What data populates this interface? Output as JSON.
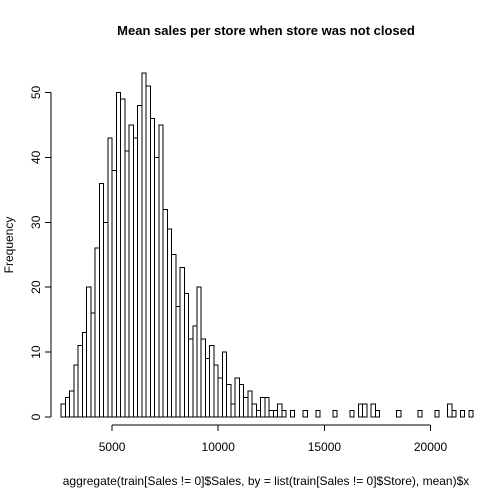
{
  "chart_data": {
    "type": "bar",
    "title": "Mean sales per store when store was not closed",
    "xlabel": "aggregate(train[Sales != 0]$Sales, by = list(train[Sales != 0]$Store), mean)$x",
    "ylabel": "Frequency",
    "xlim": [
      2500,
      22000
    ],
    "ylim": [
      0,
      53
    ],
    "bin_start": 2600,
    "bin_width": 200,
    "x_ticks": [
      5000,
      10000,
      15000,
      20000
    ],
    "x_tick_labels": [
      "5000",
      "10000",
      "15000",
      "20000"
    ],
    "y_ticks": [
      0,
      10,
      20,
      30,
      40,
      50
    ],
    "y_tick_labels": [
      "0",
      "10",
      "20",
      "30",
      "40",
      "50"
    ],
    "grid": false,
    "legend": "none",
    "bar_fill": "#ffffff",
    "bar_stroke": "#000000",
    "values": [
      2,
      3,
      4,
      8,
      11,
      13,
      20,
      16,
      26,
      36,
      30,
      43,
      38,
      50,
      49,
      41,
      45,
      43,
      48,
      53,
      51,
      46,
      40,
      45,
      32,
      29,
      25,
      17,
      23,
      19,
      12,
      14,
      20,
      12,
      9,
      11,
      8,
      6,
      10,
      5,
      2,
      6,
      5,
      3,
      4,
      2,
      1,
      3,
      3,
      1,
      1,
      2,
      1,
      0,
      1,
      0,
      0,
      1,
      0,
      0,
      1,
      0,
      0,
      0,
      1,
      0,
      0,
      0,
      1,
      0,
      2,
      2,
      0,
      2,
      1,
      0,
      0,
      0,
      0,
      1,
      0,
      0,
      0,
      0,
      1,
      0,
      0,
      0,
      1,
      0,
      0,
      2,
      1,
      0,
      1,
      0,
      1,
      0,
      0,
      0,
      0,
      0,
      0,
      0,
      0,
      0,
      0,
      0,
      0,
      0,
      1,
      0,
      0,
      0,
      0,
      0,
      0,
      0,
      1
    ]
  }
}
